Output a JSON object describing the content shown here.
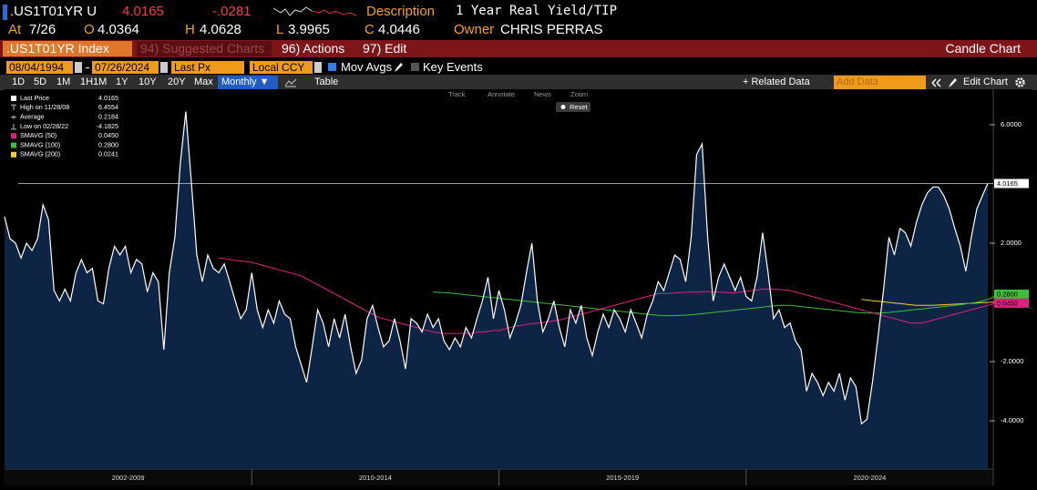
{
  "header": {
    "ticker": ".US1T01YR U",
    "last": "4.0165",
    "change": "-.0281",
    "description_label": "Description",
    "description": "1 Year Real Yield/TIP",
    "quote": [
      {
        "label": "At",
        "value": "7/26"
      },
      {
        "label": "O",
        "value": "4.0364"
      },
      {
        "label": "H",
        "value": "4.0628"
      },
      {
        "label": "L",
        "value": "3.9965"
      },
      {
        "label": "C",
        "value": "4.0446"
      },
      {
        "label": "Owner",
        "value": "CHRIS PERRAS"
      }
    ]
  },
  "menu": {
    "security": ".US1T01YR Index",
    "suggested": "94) Suggested Charts",
    "actions": "96) Actions",
    "edit": "97) Edit",
    "chart_type": "Candle Chart"
  },
  "controls": {
    "start_date": "08/04/1994",
    "end_date": "07/26/2024",
    "field": "Last Px",
    "currency": "Local CCY",
    "mov_avgs": "Mov Avgs",
    "key_events": "Key Events",
    "ranges": [
      "1D",
      "5D",
      "1M",
      "1H1M",
      "1Y",
      "10Y",
      "20Y",
      "Max"
    ],
    "frequency": "Monthly ▼",
    "table": "Table",
    "related": "+ Related Data",
    "add_data": "Add Data",
    "edit_chart": "Edit Chart"
  },
  "chart_tools": [
    "Track",
    "Annotate",
    "News",
    "Zoom"
  ],
  "reset": "Reset",
  "chart_data": {
    "type": "line",
    "ylim": [
      -5.63,
      7.2
    ],
    "yticks": [
      {
        "value": 6,
        "label": "6.0000"
      },
      {
        "value": 2,
        "label": "2.0000"
      },
      {
        "value": -2,
        "label": "-2.0000"
      },
      {
        "value": -4,
        "label": "-4.0000"
      }
    ],
    "periods": [
      "2002-2009",
      "2010-2014",
      "2015-2019",
      "2020-2024"
    ],
    "stats": [
      {
        "name": "High on 11/28/08",
        "value": "6.4554"
      },
      {
        "name": "Average",
        "value": "0.2184"
      },
      {
        "name": "Low on 02/28/22",
        "value": "-4.1825"
      }
    ],
    "series": [
      {
        "name": "Last Price",
        "legend_value": "4.0165",
        "color": "#ffffff",
        "fill": "#0e2444",
        "values": [
          2.9,
          2.15,
          2.0,
          1.5,
          2.0,
          1.75,
          2.15,
          3.3,
          2.8,
          0.4,
          0.05,
          0.45,
          0.05,
          1.0,
          1.45,
          1.0,
          1.15,
          0.05,
          -0.05,
          1.15,
          1.9,
          1.6,
          1.9,
          1.0,
          1.45,
          1.3,
          0.35,
          1.0,
          0.7,
          -1.6,
          1.0,
          2.2,
          4.7,
          6.45,
          4.1,
          1.6,
          0.7,
          1.6,
          1.15,
          1.0,
          1.3,
          0.7,
          0.05,
          -0.55,
          -0.25,
          1.0,
          -0.25,
          -0.85,
          -0.25,
          -0.7,
          0.05,
          -0.4,
          -0.55,
          -1.5,
          -2.1,
          -2.7,
          -1.5,
          -0.25,
          -0.7,
          -1.5,
          -0.55,
          -1.2,
          -0.4,
          -1.5,
          -2.4,
          -1.95,
          -0.55,
          -0.1,
          -0.85,
          -1.5,
          -1.3,
          -0.55,
          -1.3,
          -2.25,
          -0.55,
          -0.7,
          -1.0,
          -0.4,
          -0.85,
          -0.55,
          -1.3,
          -1.6,
          -1.2,
          -1.5,
          -0.85,
          -1.2,
          -0.55,
          0.05,
          0.85,
          -0.55,
          0.4,
          -0.25,
          -1.2,
          -0.7,
          -0.1,
          1.0,
          2.0,
          0.05,
          -1.0,
          -0.55,
          0.05,
          -0.85,
          -1.5,
          -0.25,
          -0.7,
          -0.1,
          -1.2,
          -1.8,
          -1.0,
          -0.4,
          -0.85,
          -0.25,
          -0.55,
          -1.0,
          -0.25,
          -0.7,
          -1.2,
          -0.4,
          0.05,
          0.7,
          0.4,
          1.0,
          1.6,
          1.45,
          0.7,
          2.2,
          5.0,
          5.35,
          2.2,
          0.05,
          0.85,
          1.3,
          0.85,
          0.4,
          0.85,
          0.2,
          0.05,
          0.85,
          2.35,
          1.0,
          -0.55,
          -0.25,
          -0.85,
          -0.7,
          -1.3,
          -1.6,
          -3.0,
          -2.4,
          -2.7,
          -3.15,
          -2.7,
          -3.0,
          -2.4,
          -3.3,
          -2.55,
          -2.85,
          -4.1,
          -3.95,
          -2.7,
          -1.2,
          0.4,
          2.2,
          1.6,
          2.5,
          2.35,
          1.9,
          2.7,
          3.3,
          3.7,
          3.9,
          3.9,
          3.6,
          3.15,
          2.5,
          1.9,
          1.05,
          2.2,
          3.15,
          3.6,
          4.0165
        ]
      },
      {
        "name": "SMAVG (50)",
        "legend_value": "0.0450",
        "color": "#e0207f",
        "values": [
          null,
          null,
          null,
          null,
          null,
          null,
          null,
          null,
          null,
          null,
          null,
          null,
          null,
          null,
          null,
          null,
          null,
          null,
          null,
          null,
          null,
          null,
          null,
          null,
          null,
          null,
          null,
          null,
          null,
          null,
          null,
          null,
          null,
          null,
          null,
          null,
          null,
          null,
          null,
          1.5,
          1.48,
          1.45,
          1.42,
          1.4,
          1.38,
          1.35,
          1.3,
          1.25,
          1.2,
          1.15,
          1.1,
          1.05,
          1.0,
          0.95,
          0.9,
          0.8,
          0.7,
          0.6,
          0.5,
          0.4,
          0.3,
          0.2,
          0.1,
          0.0,
          -0.1,
          -0.2,
          -0.3,
          -0.4,
          -0.5,
          -0.55,
          -0.6,
          -0.65,
          -0.7,
          -0.75,
          -0.8,
          -0.85,
          -0.9,
          -0.95,
          -1.0,
          -1.02,
          -1.05,
          -1.05,
          -1.05,
          -1.05,
          -1.05,
          -1.05,
          -1.0,
          -1.0,
          -0.98,
          -0.95,
          -0.95,
          -0.9,
          -0.85,
          -0.8,
          -0.78,
          -0.75,
          -0.72,
          -0.7,
          -0.68,
          -0.65,
          -0.62,
          -0.6,
          -0.55,
          -0.5,
          -0.45,
          -0.4,
          -0.35,
          -0.3,
          -0.25,
          -0.2,
          -0.15,
          -0.1,
          -0.05,
          0.0,
          0.05,
          0.1,
          0.15,
          0.2,
          0.25,
          0.3,
          0.3,
          0.3,
          0.32,
          0.33,
          0.34,
          0.35,
          0.35,
          0.36,
          0.36,
          0.35,
          0.35,
          0.34,
          0.33,
          0.32,
          0.35,
          0.38,
          0.4,
          0.42,
          0.45,
          0.45,
          0.45,
          0.44,
          0.42,
          0.4,
          0.35,
          0.3,
          0.25,
          0.2,
          0.15,
          0.1,
          0.05,
          0.0,
          -0.05,
          -0.1,
          -0.15,
          -0.2,
          -0.25,
          -0.3,
          -0.35,
          -0.4,
          -0.45,
          -0.5,
          -0.55,
          -0.6,
          -0.65,
          -0.7,
          -0.7,
          -0.7,
          -0.65,
          -0.6,
          -0.55,
          -0.5,
          -0.45,
          -0.4,
          -0.35,
          -0.3,
          -0.25,
          -0.2,
          -0.15,
          -0.1,
          -0.05,
          0.045
        ]
      },
      {
        "name": "SMAVG (100)",
        "legend_value": "0.2800",
        "color": "#3cbf3c",
        "values": [
          null,
          null,
          null,
          null,
          null,
          null,
          null,
          null,
          null,
          null,
          null,
          null,
          null,
          null,
          null,
          null,
          null,
          null,
          null,
          null,
          null,
          null,
          null,
          null,
          null,
          null,
          null,
          null,
          null,
          null,
          null,
          null,
          null,
          null,
          null,
          null,
          null,
          null,
          null,
          null,
          null,
          null,
          null,
          null,
          null,
          null,
          null,
          null,
          null,
          null,
          null,
          null,
          null,
          null,
          null,
          null,
          null,
          null,
          null,
          null,
          null,
          null,
          null,
          null,
          null,
          null,
          null,
          null,
          null,
          null,
          null,
          null,
          null,
          null,
          null,
          null,
          null,
          null,
          0.35,
          0.34,
          0.33,
          0.32,
          0.3,
          0.28,
          0.26,
          0.24,
          0.22,
          0.2,
          0.18,
          0.16,
          0.14,
          0.12,
          0.1,
          0.08,
          0.06,
          0.04,
          0.02,
          0.0,
          -0.02,
          -0.04,
          -0.06,
          -0.08,
          -0.1,
          -0.12,
          -0.14,
          -0.16,
          -0.18,
          -0.2,
          -0.22,
          -0.24,
          -0.26,
          -0.28,
          -0.3,
          -0.32,
          -0.34,
          -0.36,
          -0.38,
          -0.4,
          -0.42,
          -0.44,
          -0.45,
          -0.45,
          -0.45,
          -0.44,
          -0.43,
          -0.42,
          -0.4,
          -0.38,
          -0.36,
          -0.34,
          -0.32,
          -0.3,
          -0.28,
          -0.26,
          -0.24,
          -0.22,
          -0.2,
          -0.18,
          -0.16,
          -0.14,
          -0.12,
          -0.1,
          -0.1,
          -0.1,
          -0.12,
          -0.14,
          -0.16,
          -0.18,
          -0.2,
          -0.22,
          -0.24,
          -0.26,
          -0.28,
          -0.3,
          -0.32,
          -0.34,
          -0.35,
          -0.36,
          -0.36,
          -0.36,
          -0.35,
          -0.34,
          -0.32,
          -0.3,
          -0.28,
          -0.26,
          -0.24,
          -0.22,
          -0.2,
          -0.18,
          -0.16,
          -0.14,
          -0.12,
          -0.1,
          -0.08,
          -0.05,
          -0.02,
          0.0,
          0.05,
          0.1,
          0.18,
          0.28
        ]
      },
      {
        "name": "SMAVG (200)",
        "legend_value": "0.0241",
        "color": "#f2cf33",
        "values": [
          null,
          null,
          null,
          null,
          null,
          null,
          null,
          null,
          null,
          null,
          null,
          null,
          null,
          null,
          null,
          null,
          null,
          null,
          null,
          null,
          null,
          null,
          null,
          null,
          null,
          null,
          null,
          null,
          null,
          null,
          null,
          null,
          null,
          null,
          null,
          null,
          null,
          null,
          null,
          null,
          null,
          null,
          null,
          null,
          null,
          null,
          null,
          null,
          null,
          null,
          null,
          null,
          null,
          null,
          null,
          null,
          null,
          null,
          null,
          null,
          null,
          null,
          null,
          null,
          null,
          null,
          null,
          null,
          null,
          null,
          null,
          null,
          null,
          null,
          null,
          null,
          null,
          null,
          null,
          null,
          null,
          null,
          null,
          null,
          null,
          null,
          null,
          null,
          null,
          null,
          null,
          null,
          null,
          null,
          null,
          null,
          null,
          null,
          null,
          null,
          null,
          null,
          null,
          null,
          null,
          null,
          null,
          null,
          null,
          null,
          null,
          null,
          null,
          null,
          null,
          null,
          null,
          null,
          null,
          null,
          null,
          null,
          null,
          null,
          null,
          null,
          null,
          null,
          null,
          null,
          null,
          null,
          null,
          null,
          null,
          null,
          null,
          null,
          null,
          null,
          null,
          null,
          null,
          null,
          null,
          null,
          null,
          null,
          null,
          null,
          null,
          null,
          null,
          null,
          null,
          null,
          0.1,
          0.08,
          0.06,
          0.04,
          0.02,
          0.0,
          -0.02,
          -0.04,
          -0.06,
          -0.08,
          -0.1,
          -0.1,
          -0.1,
          -0.1,
          -0.09,
          -0.08,
          -0.07,
          -0.06,
          -0.05,
          -0.04,
          -0.03,
          -0.02,
          -0.01,
          0.0,
          0.01,
          0.0241
        ]
      }
    ],
    "tags": [
      {
        "value": 4.0165,
        "label": "4.0165",
        "color": "#ffffff"
      },
      {
        "value": 0.28,
        "label": "0.2800",
        "color": "#3cbf3c"
      },
      {
        "value": 0.045,
        "label": "0.0450",
        "color": "#e0207f"
      }
    ]
  }
}
